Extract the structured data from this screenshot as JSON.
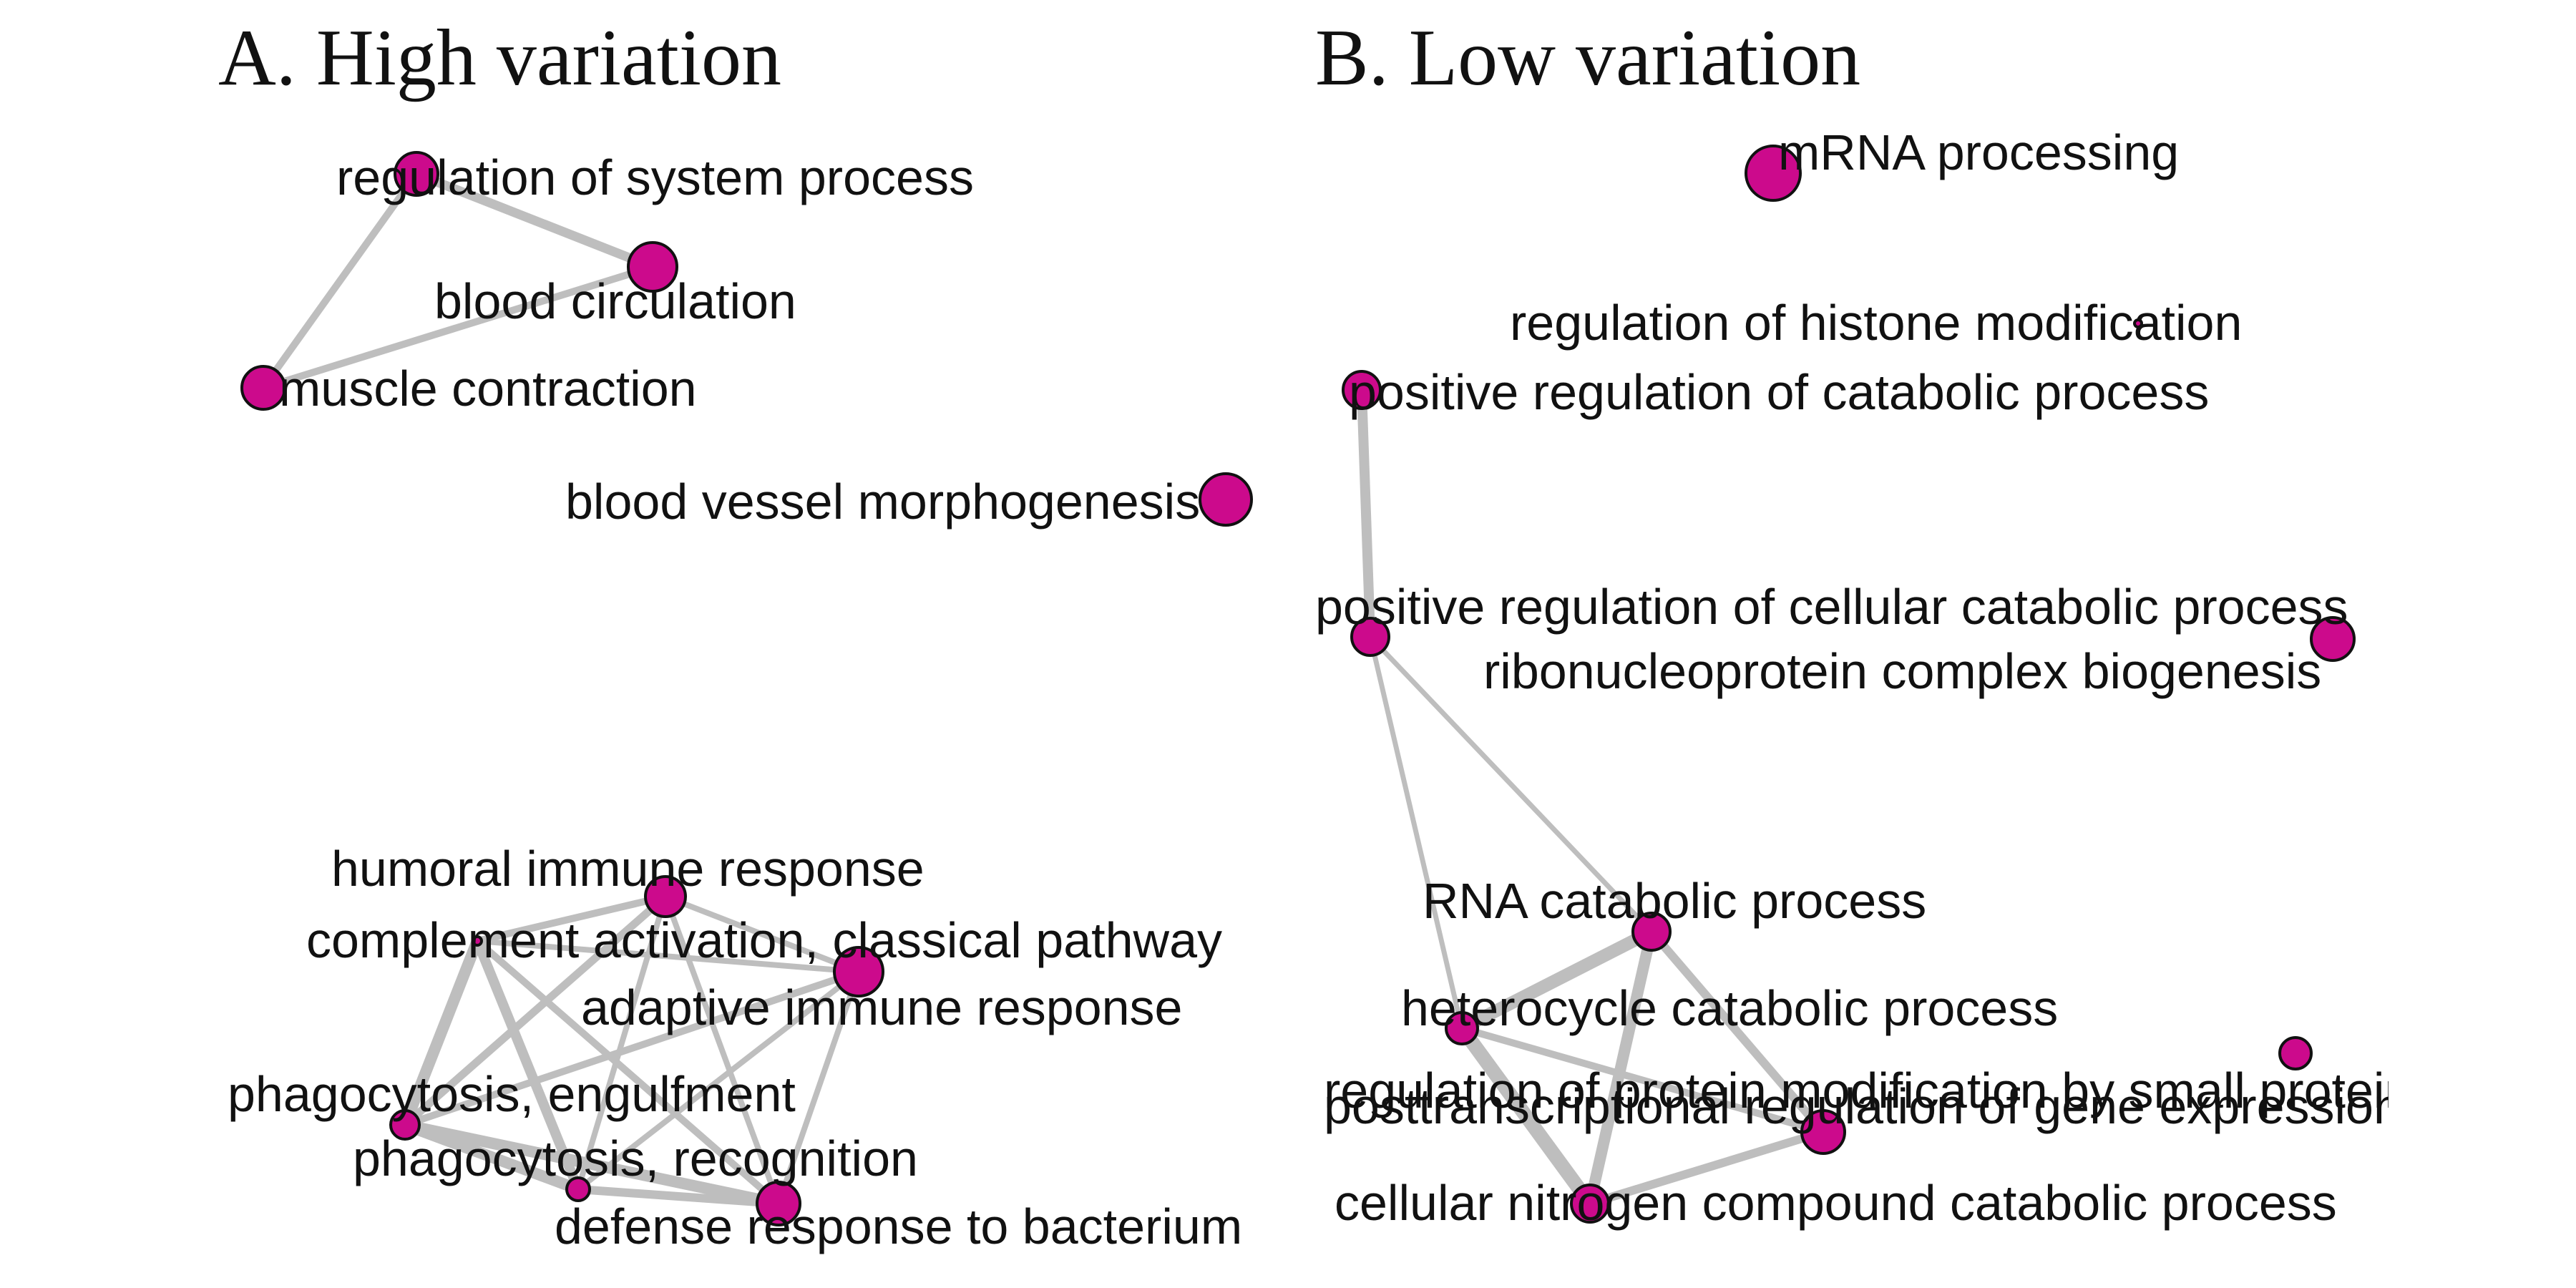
{
  "colors": {
    "node": "#CC0A8C",
    "edge": "#BEBEBE",
    "text": "#111111"
  },
  "panels": [
    {
      "title": "A. High variation",
      "nodes": [
        {
          "id": "a1",
          "label": "regulation of system process"
        },
        {
          "id": "a2",
          "label": "blood circulation"
        },
        {
          "id": "a3",
          "label": "muscle contraction"
        },
        {
          "id": "a4",
          "label": "blood vessel morphogenesis"
        },
        {
          "id": "a5",
          "label": "humoral immune response"
        },
        {
          "id": "a6",
          "label": "complement activation, classical pathway"
        },
        {
          "id": "a7",
          "label": "adaptive immune response"
        },
        {
          "id": "a8",
          "label": "phagocytosis, engulfment"
        },
        {
          "id": "a9",
          "label": "phagocytosis, recognition"
        },
        {
          "id": "a10",
          "label": "defense response to bacterium"
        }
      ],
      "edges": [
        [
          "a1",
          "a2"
        ],
        [
          "a1",
          "a3"
        ],
        [
          "a2",
          "a3"
        ],
        [
          "a5",
          "a6"
        ],
        [
          "a5",
          "a7"
        ],
        [
          "a5",
          "a8"
        ],
        [
          "a5",
          "a9"
        ],
        [
          "a5",
          "a10"
        ],
        [
          "a6",
          "a7"
        ],
        [
          "a6",
          "a8"
        ],
        [
          "a6",
          "a9"
        ],
        [
          "a6",
          "a10"
        ],
        [
          "a7",
          "a8"
        ],
        [
          "a7",
          "a9"
        ],
        [
          "a7",
          "a10"
        ],
        [
          "a8",
          "a9"
        ],
        [
          "a8",
          "a10"
        ],
        [
          "a9",
          "a10"
        ]
      ]
    },
    {
      "title": "B. Low variation",
      "nodes": [
        {
          "id": "b1",
          "label": "mRNA processing"
        },
        {
          "id": "b2",
          "label": "regulation of histone modification"
        },
        {
          "id": "b3",
          "label": "positive regulation of catabolic process"
        },
        {
          "id": "b4",
          "label": "positive regulation of cellular catabolic process"
        },
        {
          "id": "b5",
          "label": "ribonucleoprotein complex biogenesis"
        },
        {
          "id": "b6",
          "label": "RNA catabolic process"
        },
        {
          "id": "b7",
          "label": "heterocycle catabolic process"
        },
        {
          "id": "b8",
          "label": "regulation of protein modification by small protein conjugation or removal"
        },
        {
          "id": "b9",
          "label": "posttranscriptional regulation of gene expression"
        },
        {
          "id": "b10",
          "label": "cellular nitrogen compound catabolic process"
        }
      ],
      "edges": [
        [
          "b3",
          "b4"
        ],
        [
          "b4",
          "b6"
        ],
        [
          "b4",
          "b7"
        ],
        [
          "b6",
          "b7"
        ],
        [
          "b6",
          "b9"
        ],
        [
          "b6",
          "b10"
        ],
        [
          "b7",
          "b9"
        ],
        [
          "b7",
          "b10"
        ],
        [
          "b9",
          "b10"
        ]
      ]
    }
  ]
}
